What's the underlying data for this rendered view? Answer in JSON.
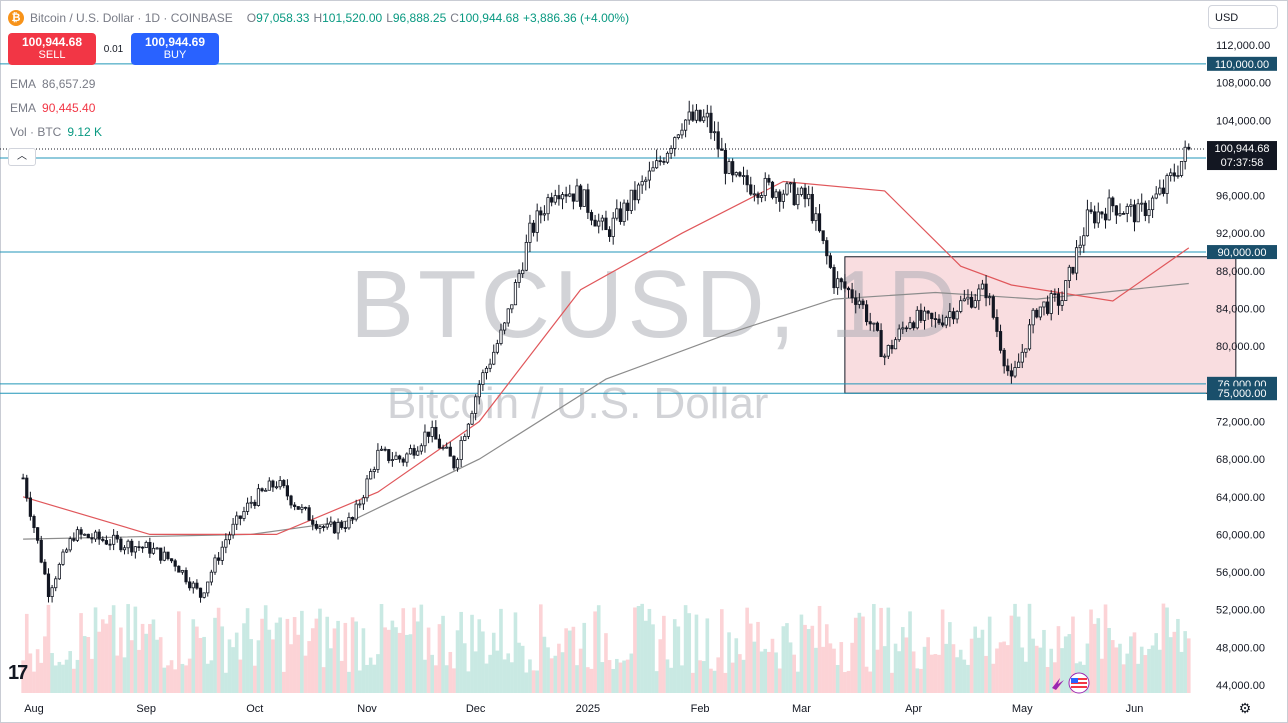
{
  "header": {
    "symbol_title": "Bitcoin / U.S. Dollar · 1D · COINBASE",
    "open_key": "O",
    "open": "97,058.33",
    "high_key": "H",
    "high": "101,520.00",
    "low_key": "L",
    "low": "96,888.25",
    "close_key": "C",
    "close": "100,944.68",
    "change": "+3,886.36 (+4.00%)"
  },
  "trade": {
    "sell_price": "100,944.68",
    "sell_label": "SELL",
    "spread": "0.01",
    "buy_price": "100,944.69",
    "buy_label": "BUY"
  },
  "indicators": [
    {
      "key": "EMA",
      "value": "86,657.29",
      "color": "#787b86"
    },
    {
      "key": "EMA",
      "value": "90,445.40",
      "color": "#f23645"
    },
    {
      "key": "Vol · BTC",
      "value": "9.12 K",
      "color": "#089981"
    }
  ],
  "collapse_icon": "chevron-up-icon",
  "currency": "USD",
  "watermark": {
    "symbol": "BTCUSD, 1D",
    "name": "Bitcoin / U.S. Dollar"
  },
  "price_axis": {
    "ticks": [
      "112,000.00",
      "108,000.00",
      "104,000.00",
      "96,000.00",
      "92,000.00",
      "88,000.00",
      "84,000.00",
      "80,000.00",
      "72,000.00",
      "68,000.00",
      "64,000.00",
      "60,000.00",
      "56,000.00",
      "52,000.00",
      "48,000.00",
      "44,000.00"
    ],
    "tick_values": [
      112000,
      108000,
      104000,
      96000,
      92000,
      88000,
      84000,
      80000,
      72000,
      68000,
      64000,
      60000,
      56000,
      52000,
      48000,
      44000
    ],
    "current_price": "100,944.68",
    "countdown": "07:37:58"
  },
  "levels": [
    {
      "label": "110,000.00",
      "value": 110000
    },
    {
      "label": "100,000.00",
      "value": 100000
    },
    {
      "label": "90,000.00",
      "value": 90000
    },
    {
      "label": "76,000.00",
      "value": 76000
    },
    {
      "label": "75,000.00",
      "value": 75000
    }
  ],
  "time_axis": [
    "Aug",
    "Sep",
    "Oct",
    "Nov",
    "Dec",
    "2025",
    "Feb",
    "Mar",
    "Apr",
    "May",
    "Jun"
  ],
  "colors": {
    "up": "#089981",
    "down": "#f23645",
    "ema_fast": "#e0575b",
    "ema_slow": "#8c8c8c",
    "level_line": "#2196b8",
    "box_fill": "#f8d7da",
    "label_bg": "#1a4f6b"
  },
  "chart_data": {
    "type": "candlestick",
    "title": "Bitcoin / U.S. Dollar",
    "interval": "1D",
    "ylim": [
      43000,
      114000
    ],
    "x_start": "2024-07-29",
    "close_points": [
      [
        "2024-07-29",
        66000
      ],
      [
        "2024-08-05",
        54000
      ],
      [
        "2024-08-12",
        60000
      ],
      [
        "2024-08-19",
        59500
      ],
      [
        "2024-08-26",
        59000
      ],
      [
        "2024-09-02",
        58500
      ],
      [
        "2024-09-09",
        57000
      ],
      [
        "2024-09-16",
        53500
      ],
      [
        "2024-09-23",
        59500
      ],
      [
        "2024-09-30",
        63500
      ],
      [
        "2024-10-07",
        65500
      ],
      [
        "2024-10-14",
        62500
      ],
      [
        "2024-10-21",
        60500
      ],
      [
        "2024-10-28",
        61500
      ],
      [
        "2024-11-04",
        68500
      ],
      [
        "2024-11-11",
        68000
      ],
      [
        "2024-11-18",
        71000
      ],
      [
        "2024-11-25",
        67500
      ],
      [
        "2024-12-02",
        76000
      ],
      [
        "2024-12-09",
        82000
      ],
      [
        "2024-12-16",
        92000
      ],
      [
        "2024-12-23",
        97000
      ],
      [
        "2024-12-30",
        96000
      ],
      [
        "2025-01-06",
        92000
      ],
      [
        "2025-01-13",
        95500
      ],
      [
        "2025-01-20",
        99000
      ],
      [
        "2025-01-27",
        104000
      ],
      [
        "2025-02-03",
        104000
      ],
      [
        "2025-02-10",
        97500
      ],
      [
        "2025-02-17",
        97000
      ],
      [
        "2025-02-24",
        96500
      ],
      [
        "2025-03-03",
        95500
      ],
      [
        "2025-03-10",
        87000
      ],
      [
        "2025-03-17",
        85000
      ],
      [
        "2025-03-24",
        79000
      ],
      [
        "2025-03-31",
        83000
      ],
      [
        "2025-04-07",
        82500
      ],
      [
        "2025-04-14",
        84500
      ],
      [
        "2025-04-21",
        86000
      ],
      [
        "2025-04-28",
        76000
      ],
      [
        "2025-05-05",
        84000
      ],
      [
        "2025-05-12",
        85000
      ],
      [
        "2025-05-19",
        93500
      ],
      [
        "2025-05-26",
        95000
      ],
      [
        "2025-06-02",
        94000
      ],
      [
        "2025-06-09",
        96500
      ],
      [
        "2025-06-16",
        100944.68
      ]
    ],
    "ema_fast_points": [
      [
        "2024-07-29",
        64000
      ],
      [
        "2024-09-02",
        60000
      ],
      [
        "2024-10-07",
        60000
      ],
      [
        "2024-11-04",
        64500
      ],
      [
        "2024-12-02",
        72000
      ],
      [
        "2024-12-30",
        86000
      ],
      [
        "2025-01-27",
        92000
      ],
      [
        "2025-02-24",
        97500
      ],
      [
        "2025-03-24",
        96500
      ],
      [
        "2025-04-14",
        88500
      ],
      [
        "2025-04-28",
        86500
      ],
      [
        "2025-05-26",
        84800
      ],
      [
        "2025-06-16",
        90445.4
      ]
    ],
    "ema_slow_points": [
      [
        "2024-07-29",
        59500
      ],
      [
        "2024-09-30",
        60000
      ],
      [
        "2024-10-28",
        61500
      ],
      [
        "2024-12-02",
        68000
      ],
      [
        "2025-01-06",
        76500
      ],
      [
        "2025-02-10",
        81500
      ],
      [
        "2025-03-10",
        85000
      ],
      [
        "2025-04-07",
        85700
      ],
      [
        "2025-05-05",
        85000
      ],
      [
        "2025-06-16",
        86657.29
      ]
    ],
    "box": {
      "x0": "2025-03-13",
      "x1": "2025-06-29",
      "y0": 75000,
      "y1": 89500
    },
    "volume_max_label": "9.12 K"
  }
}
